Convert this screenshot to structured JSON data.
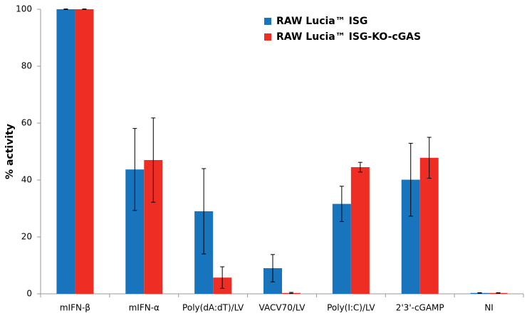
{
  "chart_data": {
    "type": "bar",
    "y_label": "% activity",
    "categories": [
      "mIFN-β",
      "mIFN-α",
      "Poly(dA:dT)/LV",
      "VACV70/LV",
      "Poly(I:C)/LV",
      "2'3'-cGAMP",
      "NI"
    ],
    "series": [
      {
        "name": "RAW Lucia™ ISG",
        "color": "#1874bd",
        "values": [
          100,
          43.7,
          29,
          9,
          31.6,
          40.1,
          0.3
        ],
        "errors": [
          0.1,
          14.4,
          15,
          4.8,
          6.2,
          12.8,
          0.1
        ]
      },
      {
        "name": "RAW Lucia™ ISG-KO-cGAS",
        "color": "#ee2e24",
        "values": [
          100,
          47,
          5.7,
          0.3,
          44.5,
          47.8,
          0.3
        ],
        "errors": [
          0.1,
          14.8,
          3.8,
          0.2,
          1.7,
          7.2,
          0.1
        ]
      }
    ],
    "ylim": [
      0,
      100
    ],
    "yticks": [
      0,
      20,
      40,
      60,
      80,
      100
    ]
  }
}
